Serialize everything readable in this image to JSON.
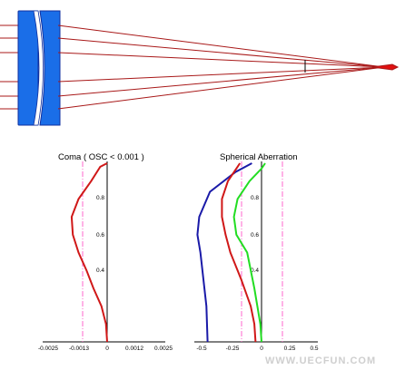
{
  "colors": {
    "lens_fill": "#1a6ee8",
    "lens_edge": "#1030a0",
    "ray": "#a81818",
    "focus": "#e01010",
    "axis": "#000000",
    "limit_line": "#ff66cc",
    "coma_curve": "#d01818",
    "sa_blue": "#1a1aa8",
    "sa_red": "#d01818",
    "sa_green": "#22dd22",
    "watermark": "#cfcfcf"
  },
  "coma_plot": {
    "title": "Coma ( OSC < 0.001 )",
    "x_ticks": [
      "-0.0025",
      "-0.0013",
      "0",
      "0.0012",
      "0.0025"
    ],
    "y_ticks": [
      "0.4",
      "0.6",
      "0.8"
    ],
    "xlim": [
      -0.0025,
      0.0025
    ],
    "ylim": [
      0,
      1
    ],
    "limit_lines": [
      -0.001
    ],
    "curve": {
      "color": "coma_curve",
      "points": [
        [
          0.0,
          0.0
        ],
        [
          -5e-05,
          0.1
        ],
        [
          -0.00025,
          0.2
        ],
        [
          -0.0006,
          0.3
        ],
        [
          -0.0009,
          0.4
        ],
        [
          -0.00125,
          0.5
        ],
        [
          -0.0015,
          0.6
        ],
        [
          -0.00155,
          0.7
        ],
        [
          -0.00125,
          0.8
        ],
        [
          -0.0007,
          0.9
        ],
        [
          -0.0003,
          0.98
        ],
        [
          0.0,
          1.0
        ]
      ]
    }
  },
  "sa_plot": {
    "title": "Spherical Aberration",
    "x_ticks": [
      "-0.5",
      "-0.25",
      "0",
      "0.25",
      "0.5"
    ],
    "y_ticks": [
      "0.4",
      "0.6",
      "0.8"
    ],
    "xlim": [
      -0.5,
      0.5
    ],
    "ylim": [
      0,
      1
    ],
    "limit_lines": [
      -0.24,
      0.24
    ],
    "curves": [
      {
        "color": "sa_blue",
        "points": [
          [
            -0.45,
            0.0
          ],
          [
            -0.46,
            0.2
          ],
          [
            -0.51,
            0.5
          ],
          [
            -0.535,
            0.6
          ],
          [
            -0.52,
            0.7
          ],
          [
            -0.43,
            0.84
          ],
          [
            -0.22,
            0.95
          ],
          [
            -0.08,
            1.0
          ]
        ]
      },
      {
        "color": "sa_red",
        "points": [
          [
            -0.05,
            0.0
          ],
          [
            -0.06,
            0.1
          ],
          [
            -0.09,
            0.2
          ],
          [
            -0.17,
            0.35
          ],
          [
            -0.26,
            0.5
          ],
          [
            -0.3,
            0.6
          ],
          [
            -0.33,
            0.7
          ],
          [
            -0.33,
            0.8
          ],
          [
            -0.28,
            0.9
          ],
          [
            -0.2,
            0.98
          ],
          [
            -0.18,
            1.0
          ]
        ]
      },
      {
        "color": "sa_green",
        "points": [
          [
            0.0,
            0.0
          ],
          [
            -0.01,
            0.1
          ],
          [
            -0.06,
            0.3
          ],
          [
            -0.12,
            0.5
          ],
          [
            -0.21,
            0.6
          ],
          [
            -0.23,
            0.7
          ],
          [
            -0.2,
            0.8
          ],
          [
            -0.1,
            0.9
          ],
          [
            0.0,
            0.97
          ],
          [
            0.03,
            1.0
          ]
        ]
      }
    ]
  },
  "watermark": "WWW.UECFUN.COM"
}
